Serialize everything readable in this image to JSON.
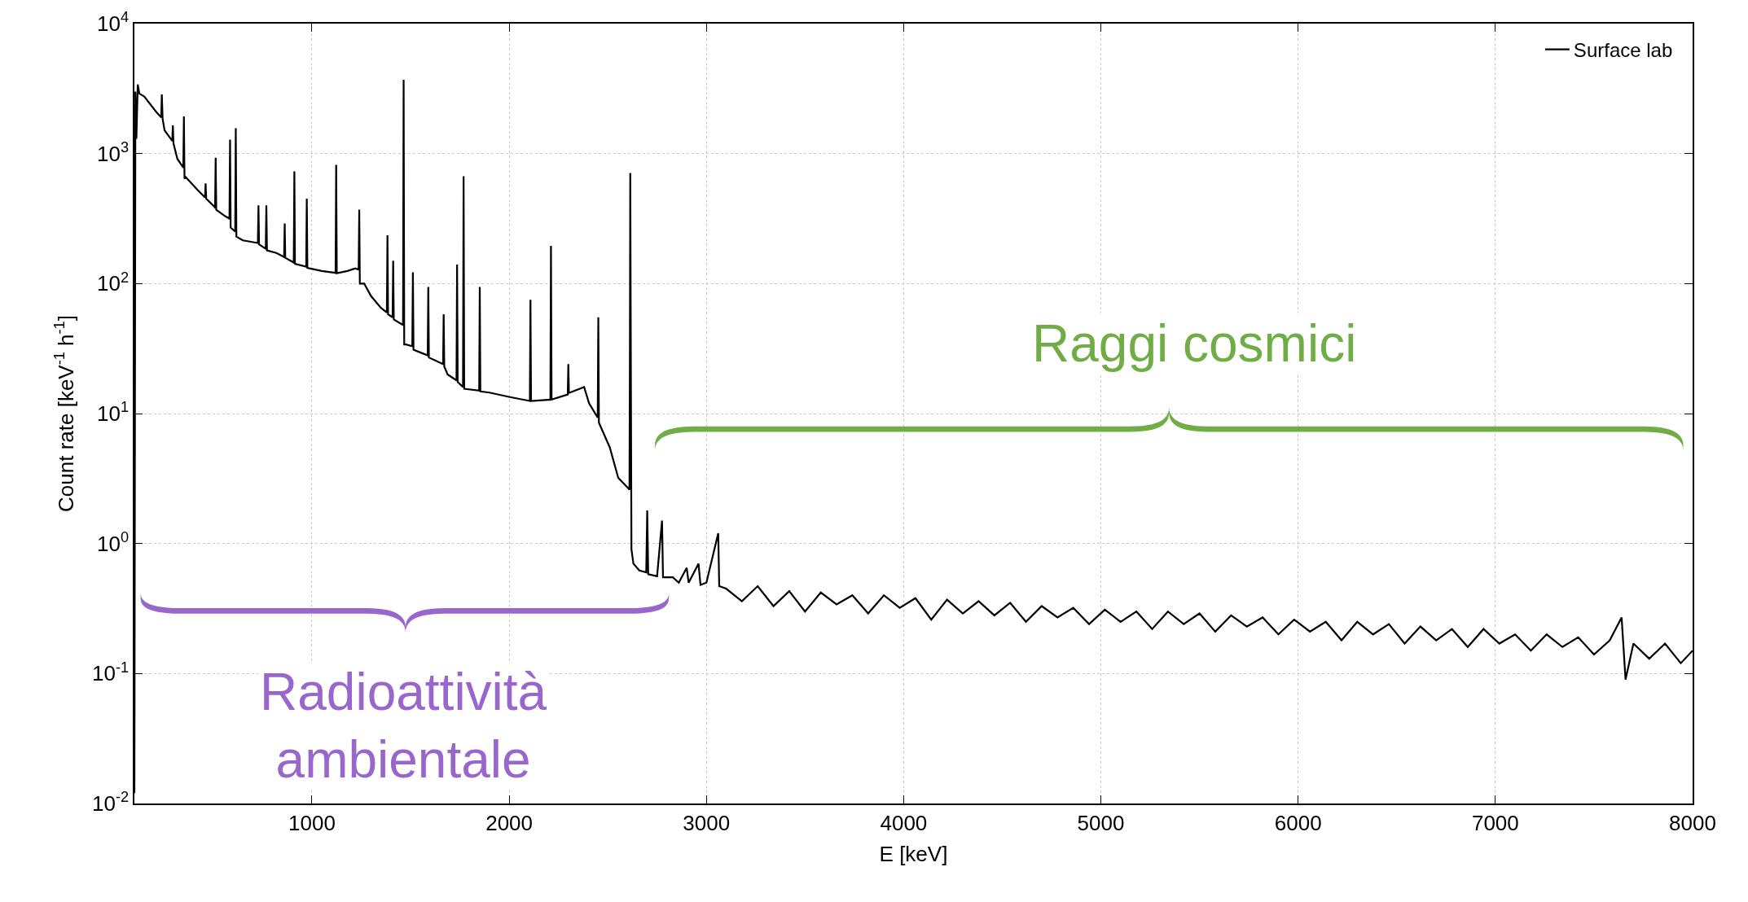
{
  "chart_data": {
    "type": "line",
    "xlabel": "E [keV]",
    "ylabel": "Count rate [keV$^{-1}$ h$^{-1}$]",
    "log": "y",
    "xlim": [
      100,
      8000
    ],
    "xticks": [
      1000,
      2000,
      3000,
      4000,
      5000,
      6000,
      7000,
      8000
    ],
    "ylim": [
      0.01,
      10000
    ],
    "yticks": [
      {
        "value": 0.01,
        "label": "10$^{-2}$"
      },
      {
        "value": 0.1,
        "label": "10$^{-1}$"
      },
      {
        "value": 1,
        "label": "10$^{0}$"
      },
      {
        "value": 10,
        "label": "10$^{1}$"
      },
      {
        "value": 100,
        "label": "10$^{2}$"
      },
      {
        "value": 1000,
        "label": "10$^{3}$"
      },
      {
        "value": 10000,
        "label": "10$^{4}$"
      }
    ],
    "grid": true,
    "legend": "top right",
    "marker": "none",
    "line_style": "solid",
    "annotations": [
      "Raggi cosmici",
      "Radioattività\nambientale"
    ],
    "series": [
      {
        "name": "Surface lab",
        "color": "#000000",
        "x": [
          100,
          105,
          110,
          117,
          125,
          150,
          210,
          236,
          239,
          243,
          253,
          292,
          295,
          298,
          318,
          348,
          351,
          354,
          360,
          420,
          458,
          461,
          464,
          506,
          509,
          512,
          515,
          560,
          582,
          585,
          588,
          611,
          614,
          617,
          650,
          726,
          729,
          732,
          766,
          769,
          772,
          820,
          859,
          862,
          865,
          908,
          911,
          914,
          971,
          974,
          977,
          1050,
          1120,
          1123,
          1126,
          1180,
          1220,
          1237,
          1240,
          1243,
          1265,
          1300,
          1350,
          1380,
          1383,
          1386,
          1409,
          1412,
          1415,
          1462,
          1465,
          1468,
          1477,
          1509,
          1512,
          1515,
          1587,
          1590,
          1593,
          1665,
          1668,
          1671,
          1688,
          1733,
          1736,
          1739,
          1766,
          1769,
          1772,
          1848,
          1851,
          1854,
          1900,
          2004,
          2105,
          2108,
          2111,
          2209,
          2212,
          2215,
          2297,
          2300,
          2303,
          2380,
          2405,
          2449,
          2452,
          2455,
          2510,
          2553,
          2600,
          2610,
          2612,
          2614,
          2617,
          2620,
          2630,
          2660,
          2695,
          2700,
          2705,
          2750,
          2775,
          2780,
          2830,
          2860,
          2900,
          2910,
          2960,
          2970,
          3000,
          3060,
          3065,
          3100,
          3180,
          3260,
          3340,
          3420,
          3500,
          3580,
          3660,
          3740,
          3820,
          3900,
          3980,
          4060,
          4140,
          4220,
          4300,
          4380,
          4460,
          4540,
          4620,
          4700,
          4780,
          4860,
          4940,
          5020,
          5100,
          5180,
          5260,
          5340,
          5420,
          5500,
          5580,
          5660,
          5740,
          5820,
          5900,
          5980,
          6060,
          6140,
          6220,
          6300,
          6380,
          6460,
          6540,
          6620,
          6700,
          6780,
          6860,
          6940,
          7020,
          7100,
          7180,
          7260,
          7340,
          7420,
          7500,
          7580,
          7640,
          7660,
          7700,
          7780,
          7860,
          7940,
          8000
        ],
        "values": [
          0.012,
          3000,
          1300,
          3400,
          2900,
          2750,
          2100,
          1900,
          2850,
          1850,
          1510,
          1250,
          1650,
          1200,
          910,
          780,
          1930,
          640,
          660,
          525,
          460,
          590,
          450,
          390,
          380,
          930,
          370,
          330,
          316,
          1280,
          270,
          251,
          1570,
          230,
          215,
          205,
          400,
          200,
          185,
          400,
          180,
          172,
          160,
          290,
          158,
          145,
          730,
          142,
          135,
          450,
          132,
          125,
          121,
          820,
          120,
          125,
          131,
          128,
          370,
          100,
          100,
          80,
          65,
          60,
          235,
          58,
          55,
          150,
          53,
          48,
          3700,
          34,
          34,
          33,
          122,
          31,
          28,
          94,
          27,
          24,
          58,
          23,
          20,
          18,
          140,
          17.5,
          16,
          670,
          15.5,
          15,
          94,
          14.8,
          14.5,
          13.4,
          12.5,
          75,
          12.5,
          12.8,
          195,
          12.8,
          14,
          24,
          14.4,
          16,
          12,
          9.3,
          55,
          8.5,
          5.5,
          3.2,
          2.7,
          2.6,
          23,
          710,
          23,
          0.9,
          0.7,
          0.62,
          0.6,
          1.8,
          0.58,
          0.56,
          1.5,
          0.55,
          0.55,
          0.5,
          0.65,
          0.5,
          0.7,
          0.48,
          0.5,
          1.2,
          0.47,
          0.45,
          0.36,
          0.47,
          0.33,
          0.43,
          0.3,
          0.42,
          0.34,
          0.4,
          0.29,
          0.4,
          0.32,
          0.38,
          0.26,
          0.37,
          0.29,
          0.36,
          0.28,
          0.35,
          0.25,
          0.33,
          0.27,
          0.32,
          0.24,
          0.31,
          0.25,
          0.3,
          0.22,
          0.3,
          0.24,
          0.29,
          0.21,
          0.28,
          0.23,
          0.27,
          0.2,
          0.26,
          0.21,
          0.25,
          0.18,
          0.25,
          0.2,
          0.24,
          0.17,
          0.23,
          0.18,
          0.22,
          0.16,
          0.22,
          0.17,
          0.2,
          0.15,
          0.2,
          0.16,
          0.19,
          0.14,
          0.18,
          0.27,
          0.09,
          0.17,
          0.13,
          0.17,
          0.12,
          0.15
        ]
      }
    ]
  }
}
